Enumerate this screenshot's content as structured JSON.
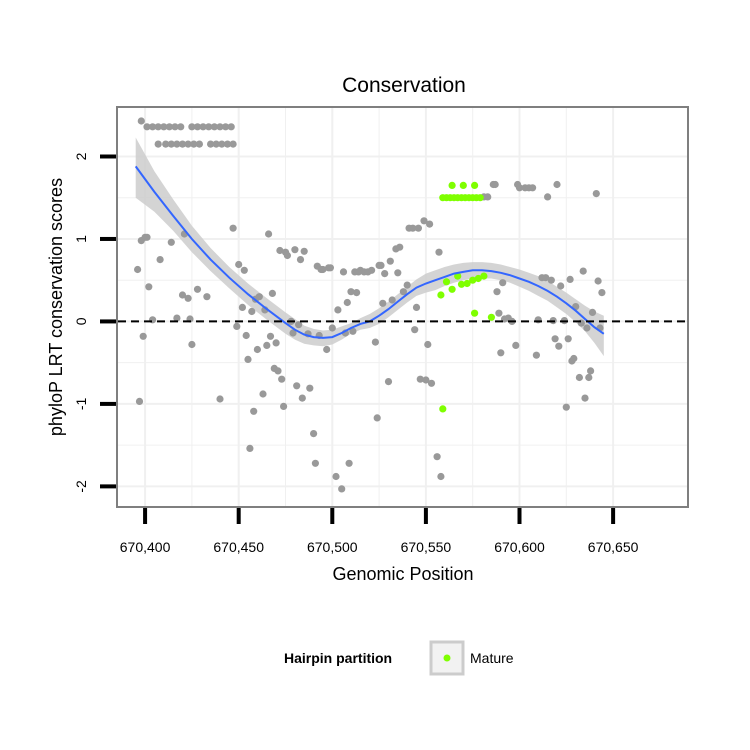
{
  "chart_data": {
    "type": "scatter",
    "title": "Conservation",
    "xlabel": "Genomic Position",
    "ylabel": "phyloP LRT conservation scores",
    "xlim": [
      670385,
      670690
    ],
    "ylim": [
      -2.25,
      2.6
    ],
    "x_ticks": [
      670400,
      670450,
      670500,
      670550,
      670600,
      670650
    ],
    "x_tick_labels": [
      "670,400",
      "670,450",
      "670,500",
      "670,550",
      "670,600",
      "670,650"
    ],
    "y_ticks": [
      -2,
      -1,
      0,
      1,
      2
    ],
    "y_tick_labels": [
      "-2",
      "-1",
      "0",
      "1",
      "2"
    ],
    "reference_line": {
      "y": 0,
      "style": "dashed"
    },
    "grid": true,
    "colors": {
      "other": "#999999",
      "mature": "#7fff00",
      "smooth_line": "#3366ff",
      "ribbon": "#cccccc",
      "panel_border": "#7f7f7f",
      "grid": "#f0f0f0"
    },
    "legend": {
      "title": "Hairpin partition",
      "entries": [
        "Mature"
      ],
      "position": "bottom"
    },
    "smooth": {
      "x": [
        670395,
        670405,
        670415,
        670425,
        670435,
        670445,
        670455,
        670465,
        670475,
        670480,
        670485,
        670490,
        670495,
        670500,
        670505,
        670510,
        670515,
        670520,
        670525,
        670530,
        670535,
        670540,
        670545,
        670550,
        670555,
        670560,
        670565,
        670570,
        670575,
        670580,
        670585,
        670590,
        670595,
        670600,
        670605,
        670610,
        670615,
        670620,
        670625,
        670630,
        670635,
        670640,
        670645
      ],
      "y": [
        1.88,
        1.57,
        1.28,
        1.0,
        0.75,
        0.53,
        0.33,
        0.15,
        -0.02,
        -0.1,
        -0.16,
        -0.19,
        -0.2,
        -0.19,
        -0.14,
        -0.08,
        -0.03,
        0.0,
        0.07,
        0.15,
        0.24,
        0.33,
        0.41,
        0.46,
        0.5,
        0.54,
        0.58,
        0.6,
        0.62,
        0.62,
        0.61,
        0.59,
        0.56,
        0.52,
        0.48,
        0.43,
        0.37,
        0.3,
        0.22,
        0.13,
        0.03,
        -0.07,
        -0.15
      ],
      "ribbon_upper": [
        2.23,
        1.82,
        1.48,
        1.16,
        0.89,
        0.66,
        0.46,
        0.28,
        0.11,
        0.03,
        -0.05,
        -0.09,
        -0.11,
        -0.1,
        -0.06,
        -0.02,
        0.04,
        0.09,
        0.16,
        0.24,
        0.33,
        0.42,
        0.51,
        0.58,
        0.62,
        0.66,
        0.69,
        0.71,
        0.72,
        0.72,
        0.71,
        0.69,
        0.66,
        0.63,
        0.59,
        0.55,
        0.49,
        0.42,
        0.35,
        0.27,
        0.19,
        0.12,
        0.07
      ],
      "ribbon_lower": [
        1.5,
        1.33,
        1.1,
        0.84,
        0.61,
        0.4,
        0.2,
        0.02,
        -0.15,
        -0.22,
        -0.27,
        -0.29,
        -0.3,
        -0.28,
        -0.22,
        -0.15,
        -0.1,
        -0.08,
        -0.03,
        0.05,
        0.14,
        0.23,
        0.31,
        0.35,
        0.38,
        0.43,
        0.47,
        0.5,
        0.52,
        0.52,
        0.52,
        0.5,
        0.47,
        0.42,
        0.37,
        0.31,
        0.25,
        0.17,
        0.09,
        -0.01,
        -0.12,
        -0.26,
        -0.42
      ]
    },
    "series": [
      {
        "name": "Other",
        "points": [
          [
            670398,
            2.43
          ],
          [
            670401,
            2.36
          ],
          [
            670404,
            2.36
          ],
          [
            670407,
            2.36
          ],
          [
            670410,
            2.36
          ],
          [
            670413,
            2.36
          ],
          [
            670416,
            2.36
          ],
          [
            670419,
            2.36
          ],
          [
            670425,
            2.36
          ],
          [
            670428,
            2.36
          ],
          [
            670431,
            2.36
          ],
          [
            670434,
            2.36
          ],
          [
            670437,
            2.36
          ],
          [
            670440,
            2.36
          ],
          [
            670443,
            2.36
          ],
          [
            670446,
            2.36
          ],
          [
            670407,
            2.15
          ],
          [
            670411,
            2.15
          ],
          [
            670414,
            2.15
          ],
          [
            670417,
            2.15
          ],
          [
            670420,
            2.15
          ],
          [
            670423,
            2.15
          ],
          [
            670426,
            2.15
          ],
          [
            670429,
            2.15
          ],
          [
            670435,
            2.15
          ],
          [
            670438,
            2.15
          ],
          [
            670441,
            2.15
          ],
          [
            670444,
            2.15
          ],
          [
            670447,
            2.15
          ],
          [
            670396,
            0.63
          ],
          [
            670397,
            -0.97
          ],
          [
            670398,
            0.98
          ],
          [
            670399,
            -0.18
          ],
          [
            670400,
            1.02
          ],
          [
            670401,
            1.02
          ],
          [
            670402,
            0.42
          ],
          [
            670404,
            0.02
          ],
          [
            670408,
            0.75
          ],
          [
            670414,
            0.96
          ],
          [
            670417,
            0.04
          ],
          [
            670420,
            0.32
          ],
          [
            670421,
            1.06
          ],
          [
            670423,
            0.28
          ],
          [
            670424,
            0.03
          ],
          [
            670425,
            -0.28
          ],
          [
            670428,
            0.39
          ],
          [
            670433,
            0.3
          ],
          [
            670440,
            -0.94
          ],
          [
            670447,
            1.13
          ],
          [
            670449,
            -0.06
          ],
          [
            670450,
            0.69
          ],
          [
            670452,
            0.17
          ],
          [
            670453,
            0.62
          ],
          [
            670454,
            -0.17
          ],
          [
            670455,
            -0.46
          ],
          [
            670456,
            -1.54
          ],
          [
            670457,
            0.12
          ],
          [
            670458,
            -1.09
          ],
          [
            670459,
            0.27
          ],
          [
            670460,
            -0.34
          ],
          [
            670461,
            0.3
          ],
          [
            670463,
            -0.88
          ],
          [
            670464,
            0.14
          ],
          [
            670465,
            -0.29
          ],
          [
            670466,
            1.06
          ],
          [
            670467,
            -0.18
          ],
          [
            670468,
            0.34
          ],
          [
            670469,
            -0.57
          ],
          [
            670470,
            -0.26
          ],
          [
            670471,
            -0.6
          ],
          [
            670472,
            0.86
          ],
          [
            670473,
            -0.7
          ],
          [
            670474,
            -1.03
          ],
          [
            670475,
            0.84
          ],
          [
            670476,
            0.8
          ],
          [
            670478,
            0.0
          ],
          [
            670479,
            -0.14
          ],
          [
            670480,
            0.87
          ],
          [
            670481,
            -0.78
          ],
          [
            670482,
            -0.04
          ],
          [
            670483,
            0.75
          ],
          [
            670484,
            -0.93
          ],
          [
            670485,
            0.85
          ],
          [
            670487,
            -0.15
          ],
          [
            670488,
            -0.81
          ],
          [
            670490,
            -1.36
          ],
          [
            670491,
            -1.72
          ],
          [
            670492,
            0.67
          ],
          [
            670493,
            -0.17
          ],
          [
            670494,
            0.63
          ],
          [
            670495,
            0.63
          ],
          [
            670497,
            -0.34
          ],
          [
            670498,
            0.65
          ],
          [
            670499,
            0.65
          ],
          [
            670500,
            -0.08
          ],
          [
            670502,
            -1.88
          ],
          [
            670503,
            0.14
          ],
          [
            670505,
            -2.03
          ],
          [
            670506,
            0.6
          ],
          [
            670507,
            -0.14
          ],
          [
            670508,
            0.23
          ],
          [
            670509,
            -1.72
          ],
          [
            670510,
            0.36
          ],
          [
            670511,
            -0.12
          ],
          [
            670512,
            0.6
          ],
          [
            670513,
            0.35
          ],
          [
            670514,
            0.6
          ],
          [
            670515,
            0.62
          ],
          [
            670517,
            0.6
          ],
          [
            670519,
            0.6
          ],
          [
            670521,
            0.62
          ],
          [
            670523,
            -0.25
          ],
          [
            670524,
            -1.17
          ],
          [
            670525,
            0.68
          ],
          [
            670526,
            0.68
          ],
          [
            670527,
            0.22
          ],
          [
            670528,
            0.58
          ],
          [
            670530,
            -0.73
          ],
          [
            670531,
            0.73
          ],
          [
            670532,
            0.26
          ],
          [
            670534,
            0.88
          ],
          [
            670535,
            0.59
          ],
          [
            670536,
            0.9
          ],
          [
            670538,
            0.36
          ],
          [
            670540,
            0.44
          ],
          [
            670541,
            1.13
          ],
          [
            670543,
            1.13
          ],
          [
            670544,
            -0.1
          ],
          [
            670545,
            0.17
          ],
          [
            670546,
            1.13
          ],
          [
            670547,
            -0.7
          ],
          [
            670549,
            1.22
          ],
          [
            670550,
            -0.71
          ],
          [
            670551,
            -0.28
          ],
          [
            670552,
            1.18
          ],
          [
            670553,
            -0.75
          ],
          [
            670556,
            -1.64
          ],
          [
            670557,
            0.84
          ],
          [
            670558,
            -1.88
          ],
          [
            670581,
            1.51
          ],
          [
            670583,
            1.51
          ],
          [
            670586,
            1.66
          ],
          [
            670587,
            1.66
          ],
          [
            670588,
            0.36
          ],
          [
            670589,
            0.1
          ],
          [
            670590,
            -0.38
          ],
          [
            670591,
            0.47
          ],
          [
            670592,
            0.03
          ],
          [
            670594,
            0.04
          ],
          [
            670596,
            0.0
          ],
          [
            670598,
            -0.29
          ],
          [
            670599,
            1.66
          ],
          [
            670600,
            1.62
          ],
          [
            670603,
            1.62
          ],
          [
            670605,
            1.62
          ],
          [
            670607,
            1.62
          ],
          [
            670609,
            -0.41
          ],
          [
            670610,
            0.02
          ],
          [
            670612,
            0.53
          ],
          [
            670614,
            0.53
          ],
          [
            670615,
            1.51
          ],
          [
            670617,
            0.5
          ],
          [
            670618,
            0.01
          ],
          [
            670619,
            -0.21
          ],
          [
            670620,
            1.66
          ],
          [
            670621,
            -0.3
          ],
          [
            670622,
            0.43
          ],
          [
            670624,
            0.01
          ],
          [
            670625,
            -1.04
          ],
          [
            670626,
            -0.21
          ],
          [
            670627,
            0.51
          ],
          [
            670628,
            -0.48
          ],
          [
            670629,
            -0.45
          ],
          [
            670630,
            0.18
          ],
          [
            670632,
            -0.68
          ],
          [
            670633,
            -0.02
          ],
          [
            670634,
            0.61
          ],
          [
            670635,
            -0.93
          ],
          [
            670636,
            -0.08
          ],
          [
            670637,
            -0.68
          ],
          [
            670638,
            -0.6
          ],
          [
            670639,
            0.11
          ],
          [
            670641,
            1.55
          ],
          [
            670642,
            0.49
          ],
          [
            670643,
            -0.08
          ],
          [
            670644,
            0.35
          ]
        ]
      },
      {
        "name": "Mature",
        "points": [
          [
            670559,
            1.5
          ],
          [
            670561,
            1.5
          ],
          [
            670563,
            1.5
          ],
          [
            670565,
            1.5
          ],
          [
            670567,
            1.5
          ],
          [
            670569,
            1.5
          ],
          [
            670571,
            1.5
          ],
          [
            670573,
            1.5
          ],
          [
            670575,
            1.5
          ],
          [
            670577,
            1.5
          ],
          [
            670579,
            1.5
          ],
          [
            670564,
            1.65
          ],
          [
            670570,
            1.65
          ],
          [
            670576,
            1.65
          ],
          [
            670558,
            0.32
          ],
          [
            670561,
            0.48
          ],
          [
            670564,
            0.39
          ],
          [
            670567,
            0.55
          ],
          [
            670569,
            0.45
          ],
          [
            670572,
            0.46
          ],
          [
            670575,
            0.5
          ],
          [
            670578,
            0.52
          ],
          [
            670581,
            0.55
          ],
          [
            670576,
            0.1
          ],
          [
            670585,
            0.05
          ],
          [
            670559,
            -1.06
          ]
        ]
      }
    ]
  }
}
